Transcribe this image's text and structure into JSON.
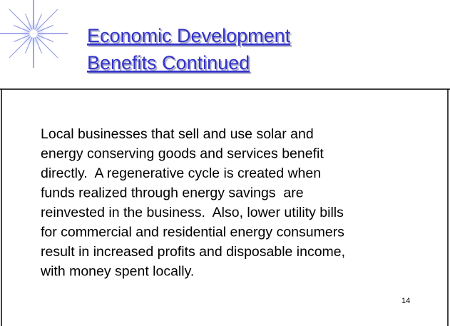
{
  "slide": {
    "title": [
      "Economic Development",
      "Benefits Continued"
    ],
    "body": [
      "Local businesses that sell and use solar and",
      "energy conserving goods and services benefit",
      "directly.  A regenerative cycle is created when",
      "funds realized through energy savings  are",
      "reinvested in the business.  Also, lower utility bills",
      "for commercial and residential energy consumers",
      "result in increased profits and disposable income,",
      "with money spent locally."
    ],
    "page_number": "14"
  }
}
